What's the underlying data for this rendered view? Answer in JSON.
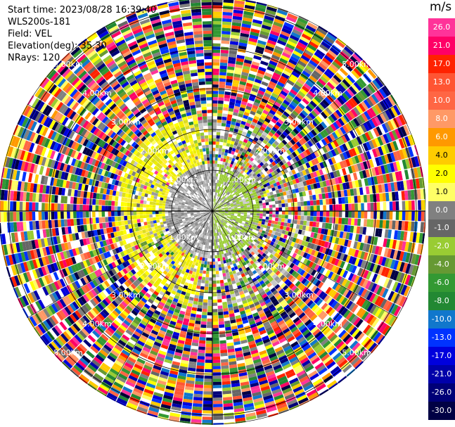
{
  "header": {
    "start_time": "Start time: 2023/08/28 16:39:40",
    "instrument": "WLS200s-181",
    "field": "Field: VEL",
    "elevation": "Elevation(deg): 35.30",
    "nrays": "NRays: 120"
  },
  "ring_labels": [
    "1.00km",
    "2.00km",
    "3.00km",
    "4.00km",
    "5.00km"
  ],
  "colorbar": {
    "unit": "m/s",
    "ticks": [
      "26.0",
      "21.0",
      "17.0",
      "13.0",
      "10.0",
      "8.0",
      "6.0",
      "4.0",
      "2.0",
      "1.0",
      "0.0",
      "-1.0",
      "-2.0",
      "-4.0",
      "-6.0",
      "-8.0",
      "-10.0",
      "-13.0",
      "-17.0",
      "-21.0",
      "-26.0",
      "-30.0"
    ],
    "colors": [
      "#ff3399",
      "#ff0066",
      "#ff2200",
      "#ff5533",
      "#ff6644",
      "#ff9966",
      "#ff9900",
      "#ffcc00",
      "#ffff00",
      "#ffff66",
      "#808080",
      "#666666",
      "#99cc33",
      "#669933",
      "#339933",
      "#228833",
      "#1177cc",
      "#0033ff",
      "#0000dd",
      "#0000aa",
      "#000077",
      "#000044"
    ]
  },
  "chart_data": {
    "type": "heatmap",
    "title": "",
    "field": "VEL",
    "units": "m/s",
    "nrays": 120,
    "range_rings_km": [
      1,
      2,
      3,
      4,
      5
    ],
    "color_scale_ms": [
      26,
      21,
      17,
      13,
      10,
      8,
      6,
      4,
      2,
      1,
      0,
      -1,
      -2,
      -4,
      -6,
      -8,
      -10,
      -13,
      -17,
      -21,
      -26,
      -30
    ]
  }
}
